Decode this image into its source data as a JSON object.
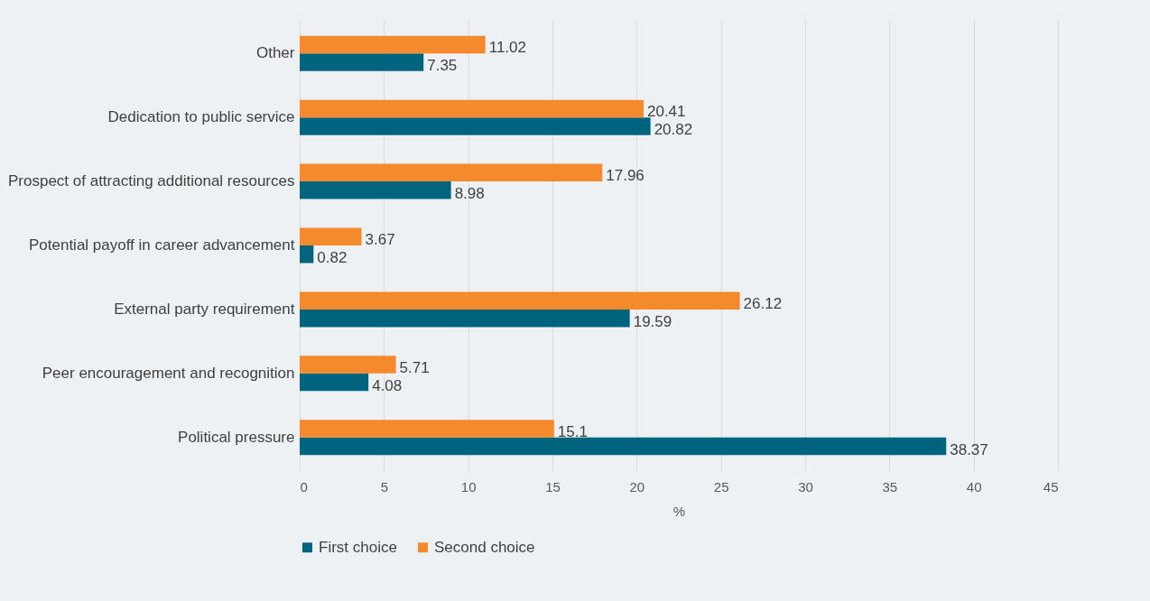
{
  "chart_data": {
    "type": "bar",
    "orientation": "horizontal",
    "xlabel": "%",
    "categories": [
      "Other",
      "Dedication to public service",
      "Prospect of attracting additional resources",
      "Potential payoff in career advancement",
      "External party requirement",
      "Peer encouragement and recognition",
      "Political pressure"
    ],
    "series": [
      {
        "name": "First choice",
        "color": "#00647f",
        "values": [
          7.35,
          20.82,
          8.98,
          0.82,
          19.59,
          4.08,
          38.37
        ]
      },
      {
        "name": "Second choice",
        "color": "#f58a2c",
        "values": [
          11.02,
          20.41,
          17.96,
          3.67,
          26.12,
          5.71,
          15.1
        ]
      }
    ],
    "xlim": [
      0,
      45
    ],
    "xticks": [
      0,
      5,
      10,
      15,
      20,
      25,
      30,
      35,
      40,
      45
    ],
    "grid": "x",
    "legend": "bottom",
    "data_labels": true
  }
}
